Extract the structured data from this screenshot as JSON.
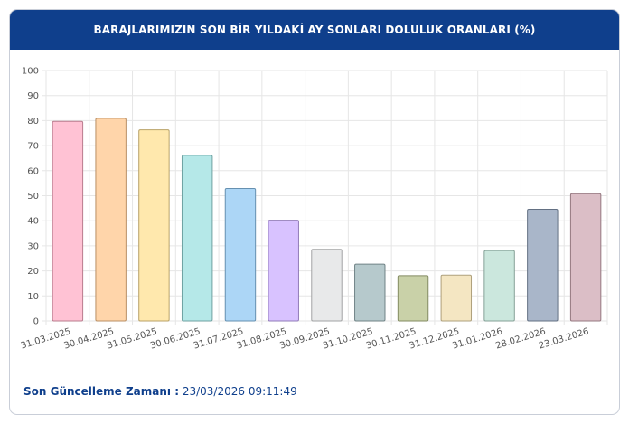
{
  "header": {
    "title": "BARAJLARIMIZIN SON BİR YILDAKİ AY SONLARI DOLULUK ORANLARI (%)"
  },
  "footer": {
    "label": "Son Güncelleme Zamanı :",
    "value": "23/03/2026 09:11:49"
  },
  "chart_data": {
    "type": "bar",
    "title": "BARAJLARIMIZIN SON BİR YILDAKİ AY SONLARI DOLULUK ORANLARI (%)",
    "categories": [
      "31.03.2025",
      "30.04.2025",
      "31.05.2025",
      "30.06.2025",
      "31.07.2025",
      "31.08.2025",
      "30.09.2025",
      "31.10.2025",
      "30.11.2025",
      "31.12.2025",
      "31.01.2026",
      "28.02.2026",
      "23.03.2026"
    ],
    "values": [
      79.7,
      80.9,
      76.3,
      66.1,
      52.9,
      40.2,
      28.6,
      22.7,
      18.1,
      18.3,
      28.1,
      44.6,
      50.8
    ],
    "colors": [
      "#ffc2d4",
      "#ffd5aa",
      "#ffe8ad",
      "#b5e8e8",
      "#acd6f6",
      "#d8c2ff",
      "#e8e9ea",
      "#b6c9cc",
      "#c9d1a8",
      "#f4e6c2",
      "#cbe7dd",
      "#a9b6c9",
      "#dbbec6"
    ],
    "ylim": [
      0,
      100
    ],
    "yticks": [
      0,
      10,
      20,
      30,
      40,
      50,
      60,
      70,
      80,
      90,
      100
    ],
    "grid": true,
    "legend": "none"
  }
}
